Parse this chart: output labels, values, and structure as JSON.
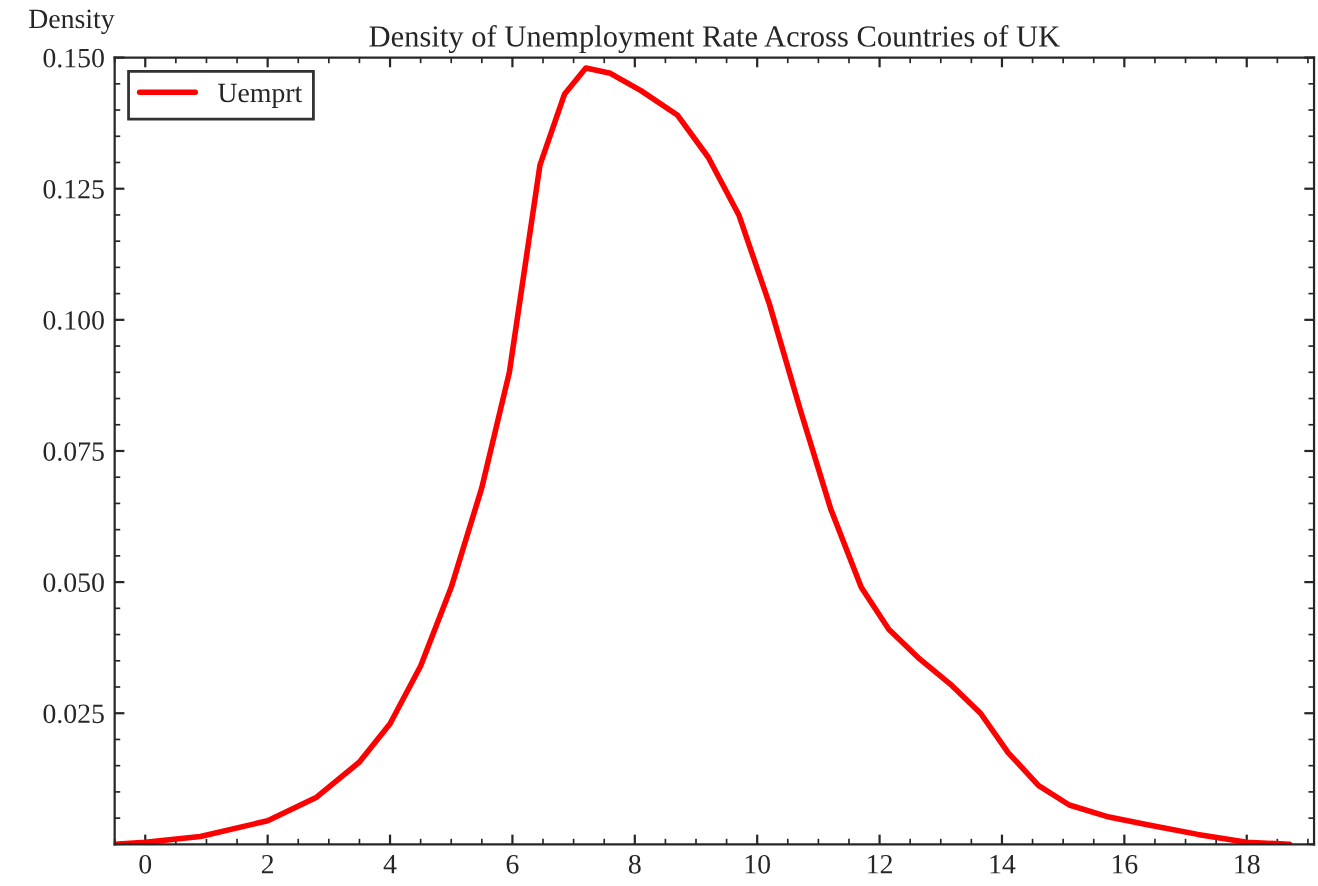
{
  "chart_data": {
    "type": "line",
    "title": "Density of Unemployment Rate Across Countries of UK",
    "ylabel": "Density",
    "series": [
      {
        "name": "Uemprt",
        "color": "#ff0000",
        "x": [
          -0.5,
          0,
          0.9,
          2,
          2.8,
          3.5,
          4,
          4.5,
          5,
          5.5,
          5.95,
          6.45,
          6.85,
          7.2,
          7.6,
          8.1,
          8.7,
          9.2,
          9.7,
          10.2,
          10.7,
          11.2,
          11.7,
          12.15,
          12.65,
          13.15,
          13.65,
          14.1,
          14.6,
          15.1,
          15.75,
          16.4,
          17.2,
          18,
          18.7
        ],
        "values": [
          0,
          0.0004,
          0.0015,
          0.0045,
          0.009,
          0.0157,
          0.023,
          0.034,
          0.049,
          0.068,
          0.09,
          0.1295,
          0.143,
          0.148,
          0.147,
          0.1437,
          0.139,
          0.131,
          0.12,
          0.103,
          0.083,
          0.064,
          0.049,
          0.041,
          0.0354,
          0.0306,
          0.025,
          0.0175,
          0.0112,
          0.0075,
          0.0052,
          0.0037,
          0.0019,
          0.0004,
          0
        ]
      }
    ],
    "xlim": [
      -0.5,
      19.1
    ],
    "ylim": [
      0,
      0.15
    ],
    "xticks": [
      0,
      2,
      4,
      6,
      8,
      10,
      12,
      14,
      16,
      18
    ],
    "yticks": [
      {
        "value": 0.025,
        "label": "0.025"
      },
      {
        "value": 0.05,
        "label": "0.050"
      },
      {
        "value": 0.075,
        "label": "0.075"
      },
      {
        "value": 0.1,
        "label": "0.100"
      },
      {
        "value": 0.125,
        "label": "0.125"
      },
      {
        "value": 0.15,
        "label": "0.150"
      }
    ],
    "grid": false,
    "legend": "top left",
    "marker": "none",
    "line_style": "solid"
  }
}
